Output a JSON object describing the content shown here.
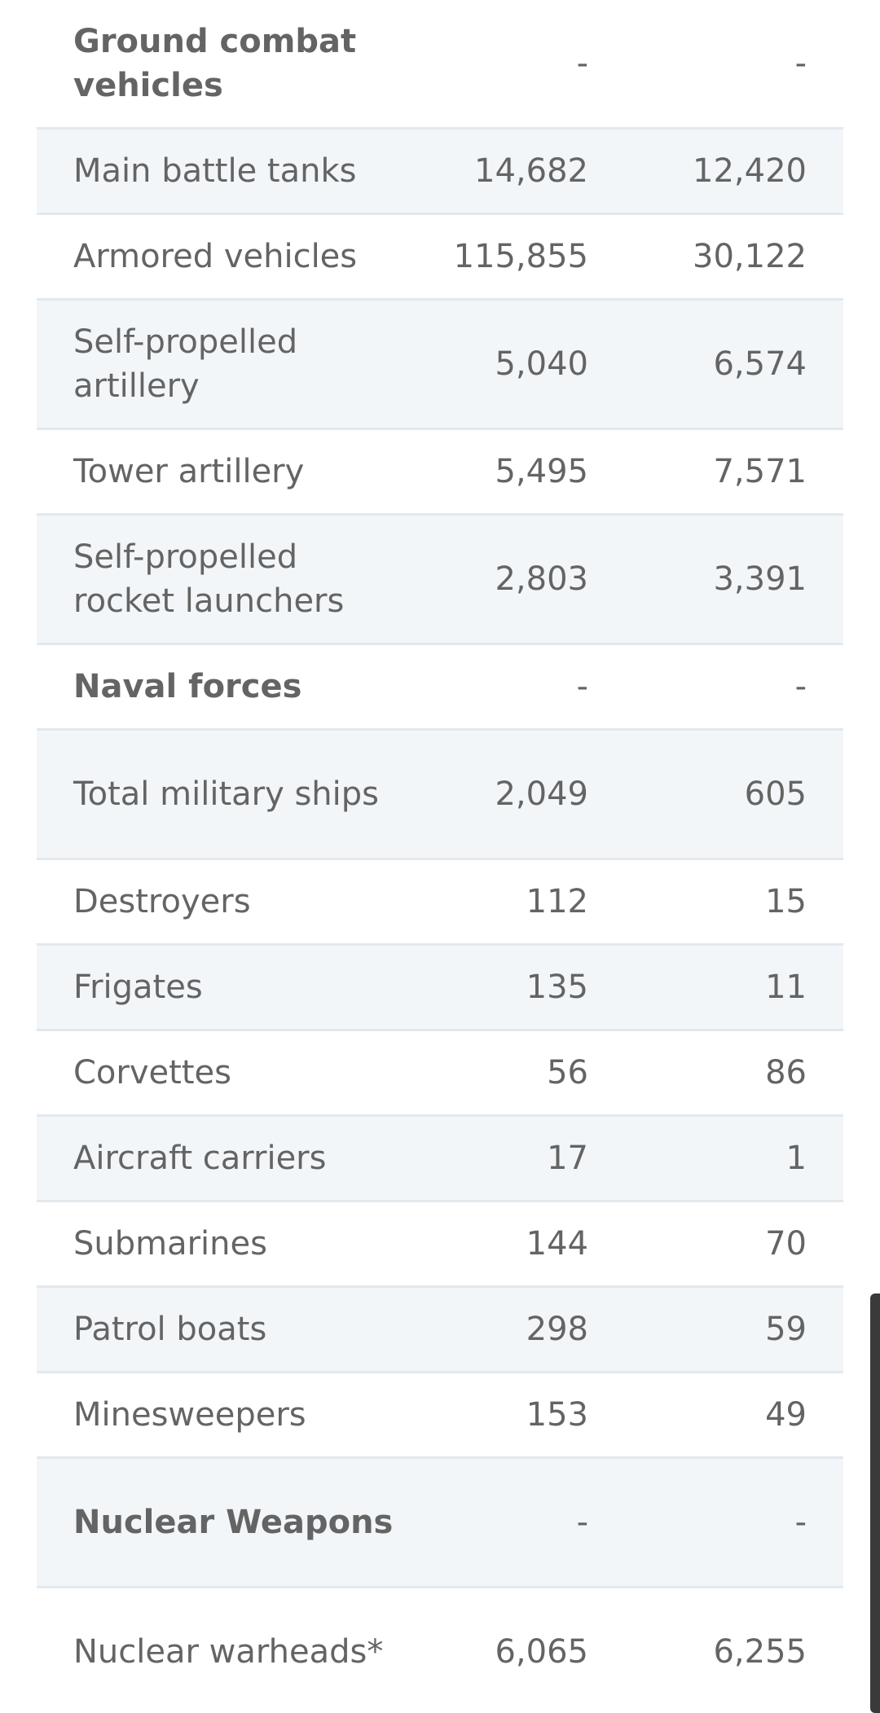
{
  "table": {
    "rows": [
      {
        "label": "Ground combat vehicles",
        "v1": "-",
        "v2": "-",
        "bold": true
      },
      {
        "label": "Main battle tanks",
        "v1": "14,682",
        "v2": "12,420"
      },
      {
        "label": "Armored vehicles",
        "v1": "115,855",
        "v2": "30,122"
      },
      {
        "label": "Self-propelled artillery",
        "v1": "5,040",
        "v2": "6,574"
      },
      {
        "label": "Tower artillery",
        "v1": "5,495",
        "v2": "7,571"
      },
      {
        "label": "Self-propelled rocket launchers",
        "v1": "2,803",
        "v2": "3,391"
      },
      {
        "label": "Naval forces",
        "v1": "-",
        "v2": "-",
        "bold": true
      },
      {
        "label": "Total military ships",
        "v1": "2,049",
        "v2": "605"
      },
      {
        "label": "Destroyers",
        "v1": "112",
        "v2": "15"
      },
      {
        "label": "Frigates",
        "v1": "135",
        "v2": "11"
      },
      {
        "label": "Corvettes",
        "v1": "56",
        "v2": "86"
      },
      {
        "label": "Aircraft carriers",
        "v1": "17",
        "v2": "1"
      },
      {
        "label": "Submarines",
        "v1": "144",
        "v2": "70"
      },
      {
        "label": "Patrol boats",
        "v1": "298",
        "v2": "59"
      },
      {
        "label": "Minesweepers",
        "v1": "153",
        "v2": "49"
      },
      {
        "label": "Nuclear Weapons",
        "v1": "-",
        "v2": "-",
        "bold": true
      },
      {
        "label": "Nuclear warheads*",
        "v1": "6,065",
        "v2": "6,255"
      }
    ]
  }
}
